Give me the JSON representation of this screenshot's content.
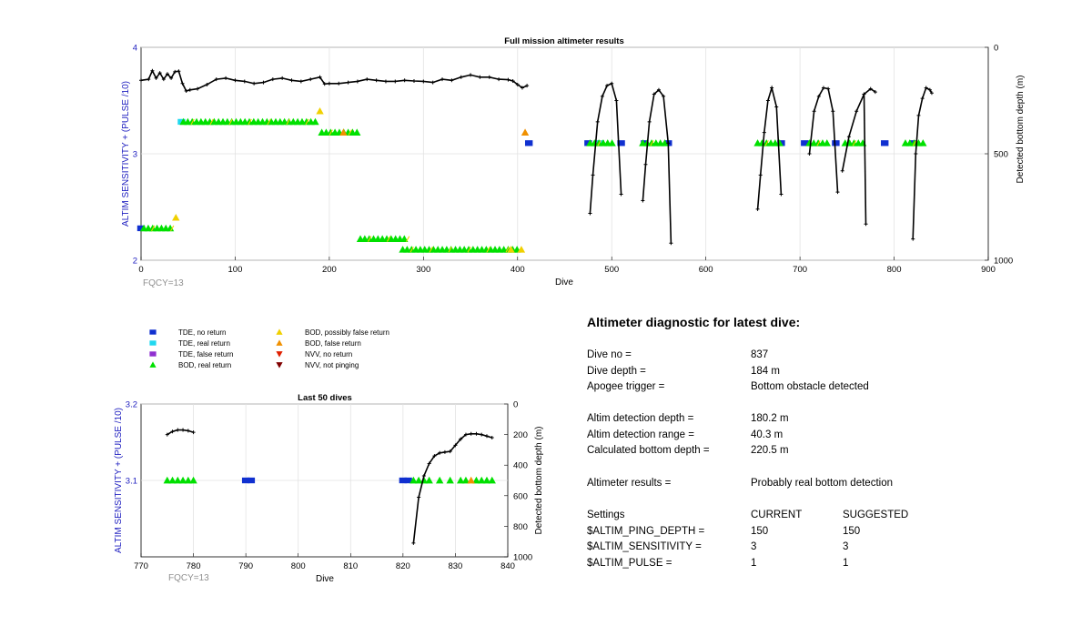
{
  "top_chart": {
    "title": "Full mission altimeter results",
    "xlabel": "Dive",
    "ylabel_left": "ALTIM SENSITIVITY + (PULSE /10)",
    "ylabel_right": "Detected bottom depth (m)",
    "note": "FQCY=13",
    "xticks": [
      "0",
      "100",
      "200",
      "300",
      "400",
      "500",
      "600",
      "700",
      "800",
      "900"
    ],
    "yticks_left": [
      "2",
      "3",
      "4"
    ],
    "yticks_right": [
      "0",
      "500",
      "1000"
    ]
  },
  "bottom_chart": {
    "title": "Last 50 dives",
    "xlabel": "Dive",
    "ylabel_left": "ALTIM SENSITIVITY + (PULSE /10)",
    "ylabel_right": "Detected bottom depth (m)",
    "note": "FQCY=13",
    "xticks": [
      "770",
      "780",
      "790",
      "800",
      "810",
      "820",
      "830",
      "840"
    ],
    "yticks_left": [
      "3.1",
      "3.2"
    ],
    "yticks_right": [
      "0",
      "200",
      "400",
      "600",
      "800",
      "1000"
    ]
  },
  "legend": {
    "items": [
      {
        "label": "TDE, no return",
        "color": "#1030d0",
        "shape": "square"
      },
      {
        "label": "TDE, real return",
        "color": "#20d8f0",
        "shape": "square"
      },
      {
        "label": "TDE, false return",
        "color": "#9030d0",
        "shape": "square"
      },
      {
        "label": "BOD, real return",
        "color": "#00e000",
        "shape": "triangle-up"
      },
      {
        "label": "BOD, possibly false return",
        "color": "#f0d000",
        "shape": "triangle-up"
      },
      {
        "label": "BOD, false return",
        "color": "#f09000",
        "shape": "triangle-up"
      },
      {
        "label": "NVV, no return",
        "color": "#e02000",
        "shape": "triangle-down"
      },
      {
        "label": "NVV, not pinging",
        "color": "#800000",
        "shape": "triangle-down"
      }
    ]
  },
  "diagnostic": {
    "title": "Altimeter diagnostic for latest dive:",
    "rows": [
      {
        "label": "Dive no =",
        "value": "837"
      },
      {
        "label": "Dive depth =",
        "value": "184 m"
      },
      {
        "label": "Apogee trigger =",
        "value": "Bottom obstacle detected"
      },
      {
        "label": "Altim detection depth =",
        "value": "180.2 m"
      },
      {
        "label": "Altim detection range =",
        "value": "40.3 m"
      },
      {
        "label": "Calculated bottom depth =",
        "value": "220.5 m"
      },
      {
        "label": "Altimeter results =",
        "value": "Probably real bottom detection"
      }
    ],
    "settings_header": {
      "label": "Settings",
      "current": "CURRENT",
      "suggested": "SUGGESTED"
    },
    "settings": [
      {
        "label": "$ALTIM_PING_DEPTH =",
        "current": "150",
        "suggested": "150"
      },
      {
        "label": "$ALTIM_SENSITIVITY =",
        "current": "3",
        "suggested": "3"
      },
      {
        "label": "$ALTIM_PULSE =",
        "current": "1",
        "suggested": "1"
      }
    ]
  },
  "chart_data": [
    {
      "type": "scatter",
      "title": "Full mission altimeter results",
      "xlim": [
        0,
        900
      ],
      "ylim_left": [
        2,
        4
      ],
      "ylim_right": [
        1000,
        0
      ],
      "grid": true,
      "series": [
        {
          "name": "TDE, no return",
          "axis": "left",
          "points": [
            [
              0,
              2.3
            ],
            [
              412,
              3.1
            ],
            [
              475,
              3.1
            ],
            [
              510,
              3.1
            ],
            [
              535,
              3.1
            ],
            [
              560,
              3.1
            ],
            [
              680,
              3.1
            ],
            [
              705,
              3.1
            ],
            [
              738,
              3.1
            ],
            [
              790,
              3.1
            ],
            [
              820,
              3.1
            ]
          ]
        },
        {
          "name": "TDE, real return",
          "axis": "left",
          "points": [
            [
              43,
              3.3
            ],
            [
              488,
              3.1
            ]
          ]
        },
        {
          "name": "BOD, real return",
          "axis": "left",
          "runs": [
            [
              3,
              35,
              2.3
            ],
            [
              45,
              187,
              3.3
            ],
            [
              192,
              233,
              3.2
            ],
            [
              233,
              283,
              2.2
            ],
            [
              278,
              403,
              2.1
            ],
            [
              477,
              505,
              3.1
            ],
            [
              533,
              560,
              3.1
            ],
            [
              655,
              680,
              3.1
            ],
            [
              710,
              732,
              3.1
            ],
            [
              748,
              768,
              3.1
            ],
            [
              812,
              835,
              3.1
            ]
          ]
        },
        {
          "name": "BOD, possibly false return",
          "axis": "left",
          "points": [
            [
              37,
              2.4
            ],
            [
              190,
              3.4
            ],
            [
              393,
              2.1
            ],
            [
              404,
              2.1
            ]
          ]
        },
        {
          "name": "BOD, false return",
          "axis": "left",
          "points": [
            [
              408,
              3.2
            ],
            [
              215,
              3.2
            ]
          ]
        },
        {
          "name": "Detected bottom depth",
          "axis": "right",
          "segments": [
            {
              "x": [
                0,
                8,
                12,
                16,
                20,
                24,
                28,
                32,
                36,
                40,
                44,
                48,
                52,
                60,
                70,
                80,
                90,
                100,
                110,
                120,
                130,
                140,
                150,
                160,
                170,
                180,
                190,
                195,
                200,
                210,
                220,
                230,
                240,
                250,
                260,
                270,
                280,
                290,
                300,
                310,
                320,
                330,
                340,
                350,
                360,
                370,
                380,
                390,
                395,
                400,
                405,
                410
              ],
              "y": [
                155,
                150,
                110,
                145,
                120,
                150,
                125,
                145,
                115,
                112,
                170,
                205,
                200,
                195,
                175,
                150,
                145,
                155,
                160,
                170,
                165,
                150,
                145,
                155,
                160,
                150,
                140,
                172,
                170,
                170,
                165,
                160,
                150,
                155,
                160,
                160,
                155,
                158,
                160,
                165,
                150,
                155,
                140,
                130,
                140,
                140,
                150,
                152,
                158,
                175,
                190,
                180
              ]
            },
            {
              "x": [
                477,
                480,
                485,
                490,
                495,
                500,
                505,
                510
              ],
              "y": [
                780,
                600,
                350,
                230,
                180,
                170,
                250,
                690
              ]
            },
            {
              "x": [
                533,
                536,
                540,
                545,
                550,
                555,
                560,
                563
              ],
              "y": [
                720,
                550,
                350,
                220,
                200,
                230,
                450,
                920
              ]
            },
            {
              "x": [
                655,
                658,
                662,
                666,
                670,
                675,
                680
              ],
              "y": [
                760,
                600,
                400,
                250,
                190,
                280,
                690
              ]
            },
            {
              "x": [
                710,
                715,
                720,
                725,
                730,
                735,
                740
              ],
              "y": [
                500,
                300,
                230,
                190,
                195,
                300,
                680
              ]
            },
            {
              "x": [
                745,
                752,
                760,
                768,
                775,
                780
              ],
              "y": [
                580,
                420,
                300,
                220,
                195,
                210
              ]
            },
            {
              "x": [
                768,
                770
              ],
              "y": [
                220,
                830
              ]
            },
            {
              "x": [
                820,
                823,
                826,
                830,
                834,
                838,
                840
              ],
              "y": [
                900,
                500,
                320,
                240,
                190,
                200,
                215
              ]
            }
          ]
        }
      ]
    },
    {
      "type": "scatter",
      "title": "Last 50 dives",
      "xlim": [
        770,
        840
      ],
      "ylim_left": [
        3.0,
        3.2
      ],
      "ylim_right": [
        1000,
        0
      ],
      "grid": true,
      "series": [
        {
          "name": "TDE, no return",
          "axis": "left",
          "points": [
            [
              790,
              3.1
            ],
            [
              791,
              3.1
            ],
            [
              820,
              3.1
            ],
            [
              821,
              3.1
            ]
          ]
        },
        {
          "name": "BOD, real return",
          "axis": "left",
          "points": [
            [
              775,
              3.1
            ],
            [
              776,
              3.1
            ],
            [
              777,
              3.1
            ],
            [
              778,
              3.1
            ],
            [
              779,
              3.1
            ],
            [
              780,
              3.1
            ],
            [
              822,
              3.1
            ],
            [
              823,
              3.1
            ],
            [
              824,
              3.1
            ],
            [
              825,
              3.1
            ],
            [
              827,
              3.1
            ],
            [
              829,
              3.1
            ],
            [
              831,
              3.1
            ],
            [
              832,
              3.1
            ],
            [
              834,
              3.1
            ],
            [
              835,
              3.1
            ],
            [
              836,
              3.1
            ],
            [
              837,
              3.1
            ]
          ]
        },
        {
          "name": "BOD, false return",
          "axis": "left",
          "points": [
            [
              833,
              3.1
            ]
          ]
        },
        {
          "name": "Detected bottom depth",
          "axis": "right",
          "segments": [
            {
              "x": [
                775,
                776,
                777,
                778,
                779,
                780
              ],
              "y": [
                200,
                180,
                170,
                170,
                175,
                185
              ]
            },
            {
              "x": [
                822,
                823,
                824,
                825,
                826,
                827,
                828,
                829,
                830,
                831,
                832,
                833,
                834,
                835,
                836,
                837
              ],
              "y": [
                910,
                610,
                470,
                390,
                340,
                320,
                315,
                310,
                270,
                230,
                200,
                195,
                195,
                200,
                210,
                220
              ]
            }
          ]
        }
      ]
    }
  ]
}
